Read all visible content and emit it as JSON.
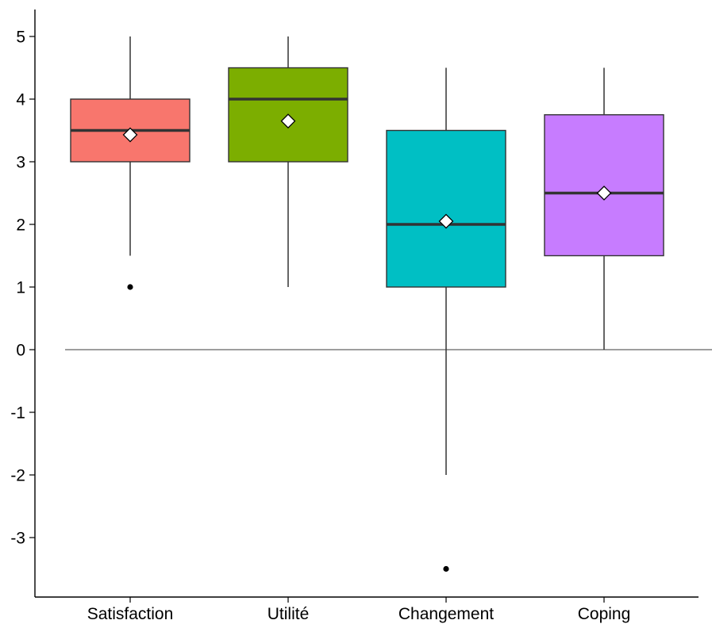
{
  "chart_data": {
    "type": "boxplot",
    "title": "",
    "xlabel": "",
    "ylabel": "",
    "ylim": [
      -3.9,
      5.45
    ],
    "y_ticks": [
      -3,
      -2,
      -1,
      0,
      1,
      2,
      3,
      4,
      5
    ],
    "y_tick_labels": [
      "-3",
      "-2",
      "-1",
      "0",
      "1",
      "2",
      "3",
      "4",
      "5"
    ],
    "reference_line": 0,
    "grid": false,
    "legend": "none",
    "categories": [
      "Satisfaction",
      "Utilité",
      "Changement",
      "Coping"
    ],
    "series": [
      {
        "category": "Satisfaction",
        "color": "#F8766D",
        "whisker_low": 1.5,
        "q1": 3.0,
        "median": 3.5,
        "q3": 4.0,
        "whisker_high": 5.0,
        "mean": 3.43,
        "outliers": [
          1.0
        ]
      },
      {
        "category": "Utilité",
        "color": "#7CAE00",
        "whisker_low": 1.0,
        "q1": 3.0,
        "median": 4.0,
        "q3": 4.5,
        "whisker_high": 5.0,
        "mean": 3.65,
        "outliers": []
      },
      {
        "category": "Changement",
        "color": "#00BFC4",
        "whisker_low": -2.0,
        "q1": 1.0,
        "median": 2.0,
        "q3": 3.5,
        "whisker_high": 4.5,
        "mean": 2.05,
        "outliers": [
          -3.5
        ]
      },
      {
        "category": "Coping",
        "color": "#C77CFF",
        "whisker_low": 0.0,
        "q1": 1.5,
        "median": 2.5,
        "q3": 3.75,
        "whisker_high": 4.5,
        "mean": 2.5,
        "outliers": []
      }
    ]
  }
}
